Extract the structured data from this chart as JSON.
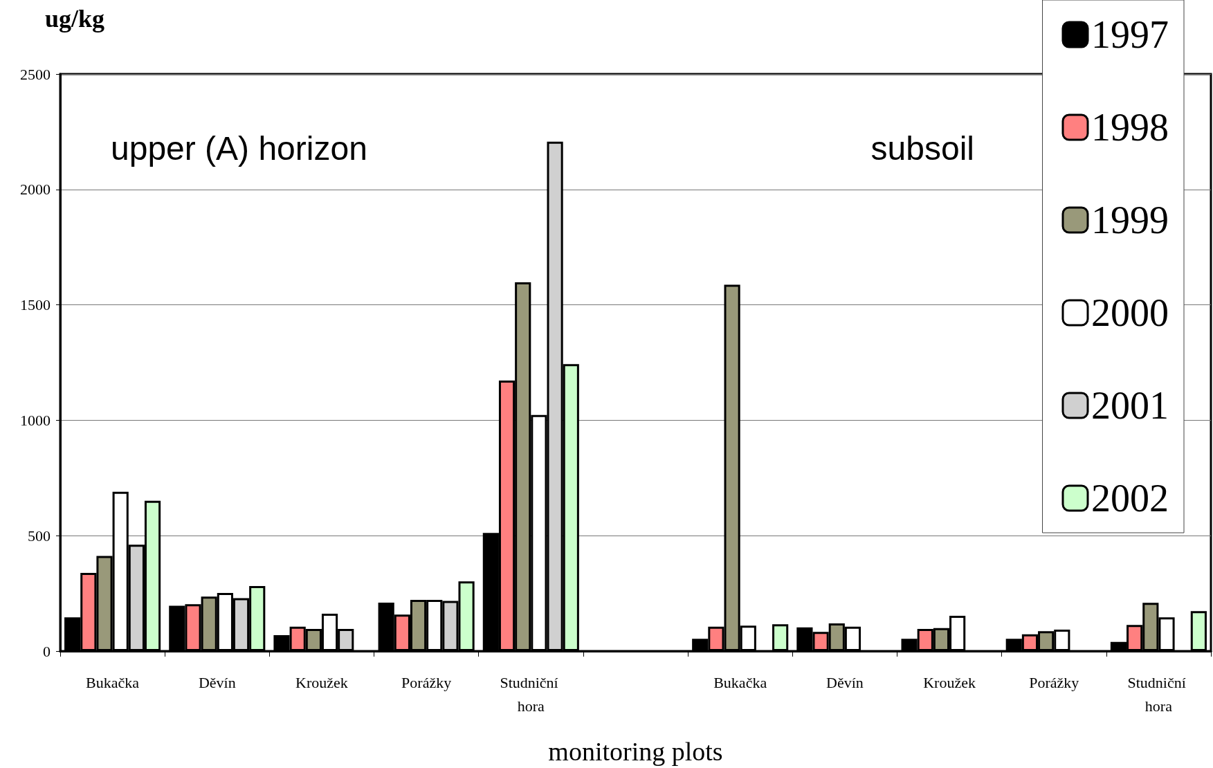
{
  "chart_data": {
    "type": "bar",
    "xlabel": "monitoring plots",
    "ylabel": "ug/kg",
    "annotations": [
      "upper (A) horizon",
      "subsoil"
    ],
    "categories": [
      "Bukačka",
      "Děvín",
      "Kroužek",
      "Porážky",
      "Studniční hora",
      null,
      "Bukačka",
      "Děvín",
      "Kroužek",
      "Porážky",
      "Studniční hora"
    ],
    "series": [
      {
        "name": "1997",
        "color": "#000000",
        "values": [
          146,
          196,
          69,
          210,
          512,
          null,
          53,
          103,
          53,
          53,
          40
        ]
      },
      {
        "name": "1998",
        "color": "#ff8080",
        "values": [
          339,
          203,
          106,
          158,
          1172,
          null,
          106,
          83,
          96,
          73,
          113
        ]
      },
      {
        "name": "1999",
        "color": "#99997a",
        "values": [
          412,
          236,
          96,
          222,
          1598,
          null,
          1587,
          120,
          100,
          86,
          209
        ]
      },
      {
        "name": "2000",
        "color": "#ffffff",
        "values": [
          690,
          252,
          162,
          222,
          1023,
          null,
          110,
          106,
          153,
          93,
          146
        ]
      },
      {
        "name": "2001",
        "color": "#d0d0d0",
        "values": [
          461,
          229,
          96,
          217,
          2207,
          null,
          null,
          null,
          null,
          null,
          null
        ]
      },
      {
        "name": "2002",
        "color": "#ccffcc",
        "values": [
          651,
          282,
          null,
          302,
          1243,
          null,
          116,
          null,
          null,
          null,
          173
        ]
      }
    ],
    "ylim": [
      0,
      2500
    ],
    "yticks": [
      0,
      500,
      1000,
      1500,
      2000,
      2500
    ],
    "grid": "y",
    "legend": "top right"
  }
}
